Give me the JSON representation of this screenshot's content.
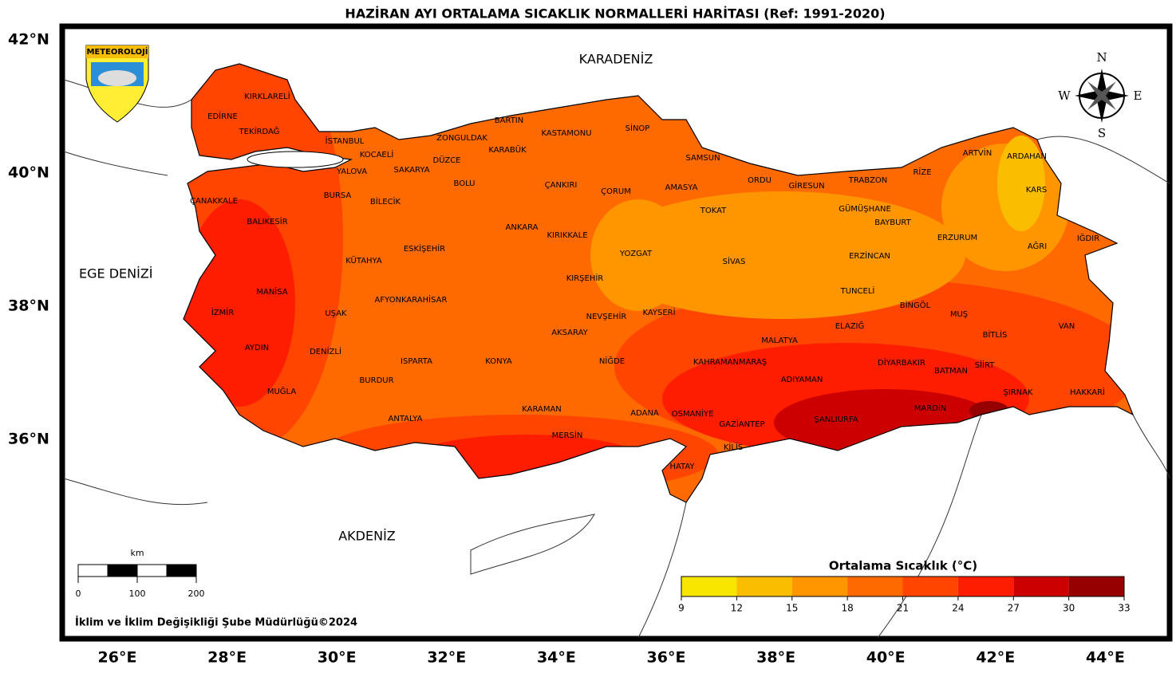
{
  "title": "HAZİRAN AYI ORTALAMA SICAKLIK NORMALLERİ HARİTASI (Ref: 1991-2020)",
  "lat_labels": [
    "42°N",
    "40°N",
    "38°N",
    "36°N"
  ],
  "lon_labels": [
    "26°E",
    "28°E",
    "30°E",
    "32°E",
    "34°E",
    "36°E",
    "38°E",
    "40°E",
    "42°E",
    "44°E"
  ],
  "seas": [
    "KARADENİZ",
    "EGE DENİZİ",
    "AKDENİZ"
  ],
  "logo": "METEOROLOJİ",
  "compass": [
    "N",
    "S",
    "W",
    "E"
  ],
  "provinces": [
    "KIRKLARELİ",
    "EDİRNE",
    "TEKİRDAĞ",
    "İSTANBUL",
    "KOCAELİ",
    "YALOVA",
    "SAKARYA",
    "ZONGULDAK",
    "BARTIN",
    "KARABÜK",
    "DÜZCE",
    "BOLU",
    "KASTAMONU",
    "SİNOP",
    "SAMSUN",
    "ÇANKIRI",
    "ÇORUM",
    "AMASYA",
    "ORDU",
    "GİRESUN",
    "TRABZON",
    "RİZE",
    "ARTVİN",
    "ARDAHAN",
    "KARS",
    "ÇANAKKALE",
    "BURSA",
    "BİLECİK",
    "BALIKESİR",
    "ANKARA",
    "KIRIKKALE",
    "TOKAT",
    "GÜMÜŞHANE",
    "BAYBURT",
    "ERZURUM",
    "IĞDIR",
    "AĞRI",
    "ESKİŞEHİR",
    "KÜTAHYA",
    "YOZGAT",
    "SİVAS",
    "ERZİNCAN",
    "MANİSA",
    "İZMİR",
    "UŞAK",
    "AFYONKARAHİSAR",
    "KIRŞEHİR",
    "NEVŞEHİR",
    "KAYSERİ",
    "TUNCELİ",
    "BİNGÖL",
    "MUŞ",
    "VAN",
    "BİTLİS",
    "ELAZIĞ",
    "MALATYA",
    "AKSARAY",
    "AYDIN",
    "DENİZLİ",
    "ISPARTA",
    "KONYA",
    "NİĞDE",
    "KAHRAMANMARAŞ",
    "DİYARBAKIR",
    "BATMAN",
    "SİİRT",
    "ADIYAMAN",
    "BURDUR",
    "MUĞLA",
    "ŞIRNAK",
    "HAKKARİ",
    "KARAMAN",
    "ADANA",
    "OSMANİYE",
    "MARDİN",
    "ŞANLIURFA",
    "ANTALYA",
    "GAZİANTEP",
    "MERSİN",
    "KİLİS",
    "HATAY"
  ],
  "colorbar": {
    "title": "Ortalama Sıcaklık (°C)",
    "ticks": [
      9,
      12,
      15,
      18,
      21,
      24,
      27,
      30,
      33
    ],
    "colors": [
      "#f9e600",
      "#fbbd00",
      "#ff9600",
      "#ff6a00",
      "#ff4500",
      "#ff1d00",
      "#cc0000",
      "#960000"
    ]
  },
  "scale_bar": {
    "unit": "km",
    "ticks": [
      0,
      100,
      200
    ]
  },
  "footer": "İklim ve İklim Değişikliği Şube Müdürlüğü©2024"
}
